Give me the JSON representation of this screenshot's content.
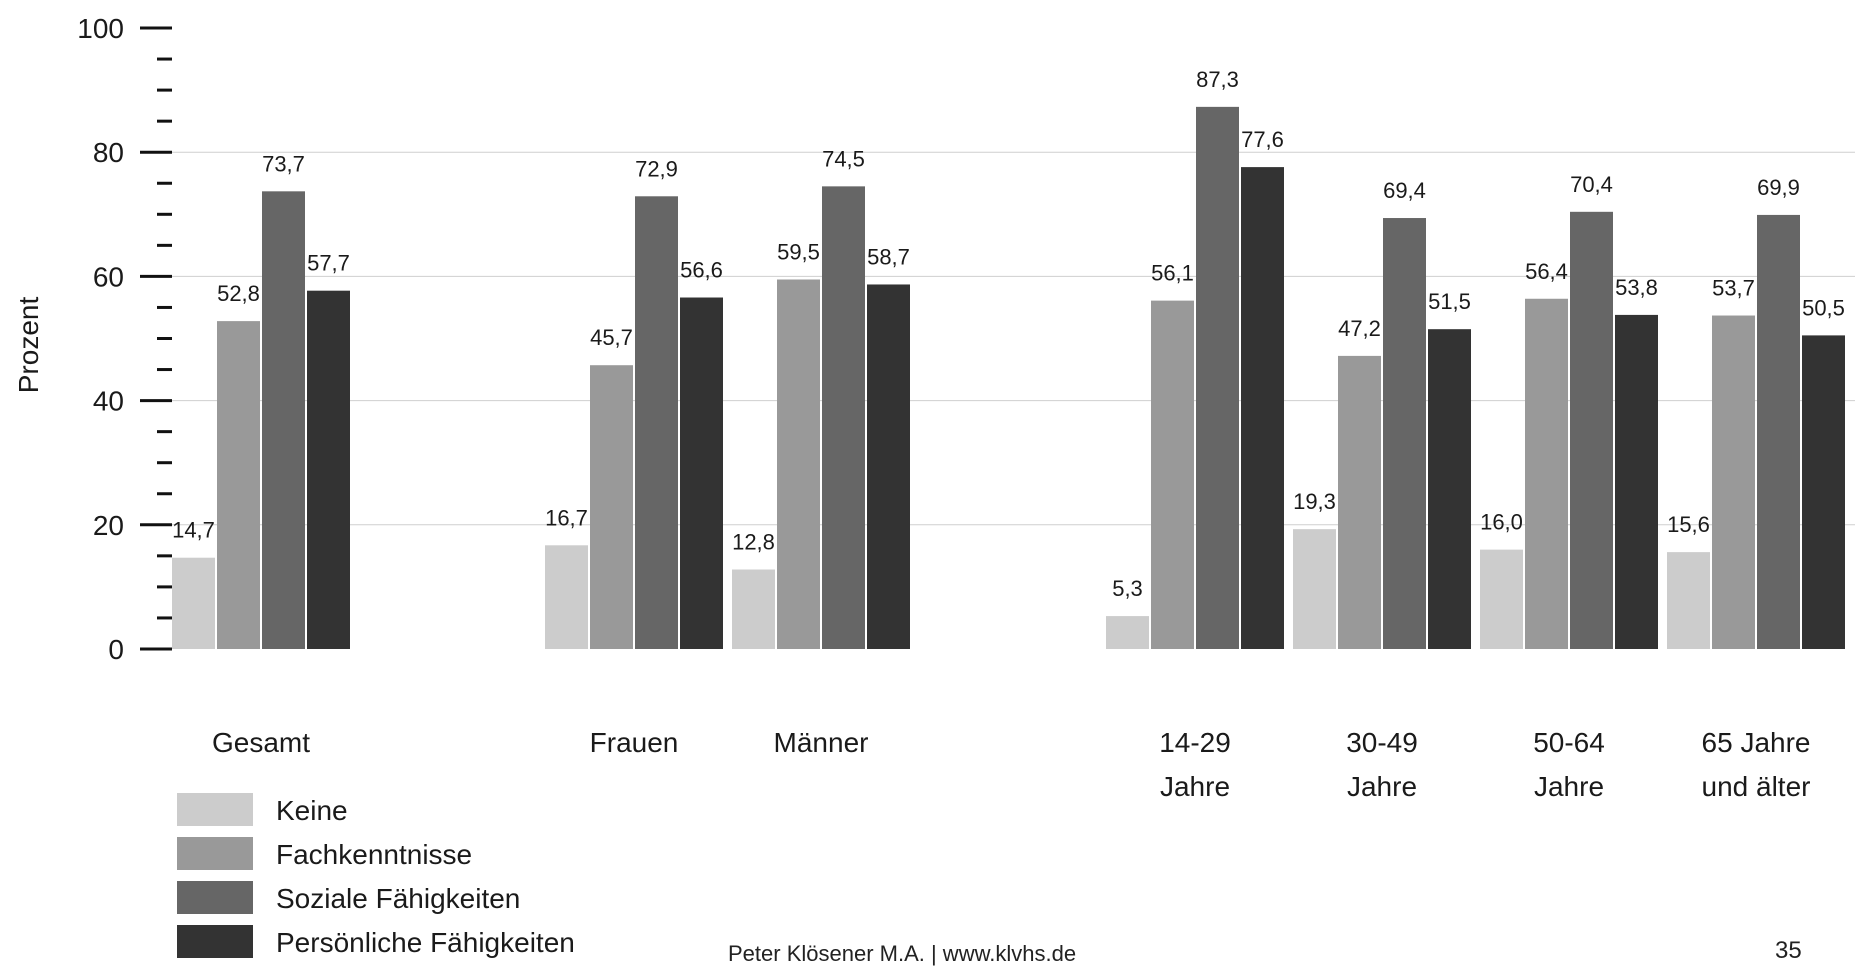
{
  "chart_data": {
    "type": "bar",
    "ylabel": "Prozent",
    "ylim": [
      0,
      100
    ],
    "yticks": [
      0,
      20,
      40,
      60,
      80,
      100
    ],
    "grid": true,
    "legend_position": "bottom-left",
    "categories": [
      "Gesamt",
      "Frauen",
      "Männer",
      "14-29 Jahre",
      "30-49 Jahre",
      "50-64 Jahre",
      "65 Jahre und älter"
    ],
    "category_labels": [
      [
        "Gesamt"
      ],
      [
        "Frauen"
      ],
      [
        "Männer"
      ],
      [
        "14-29",
        "Jahre"
      ],
      [
        "30-49",
        "Jahre"
      ],
      [
        "50-64",
        "Jahre"
      ],
      [
        "65 Jahre",
        "und älter"
      ]
    ],
    "series": [
      {
        "name": "Keine",
        "color": "#cccccc",
        "values": [
          14.7,
          16.7,
          12.8,
          5.3,
          19.3,
          16.0,
          15.6
        ],
        "labels": [
          "14,7",
          "16,7",
          "12,8",
          "5,3",
          "19,3",
          "16,0",
          "15,6"
        ]
      },
      {
        "name": "Fachkenntnisse",
        "color": "#999999",
        "values": [
          52.8,
          45.7,
          59.5,
          56.1,
          47.2,
          56.4,
          53.7
        ],
        "labels": [
          "52,8",
          "45,7",
          "59,5",
          "56,1",
          "47,2",
          "56,4",
          "53,7"
        ]
      },
      {
        "name": "Soziale Fähigkeiten",
        "color": "#666666",
        "values": [
          73.7,
          72.9,
          74.5,
          87.3,
          69.4,
          70.4,
          69.9
        ],
        "labels": [
          "73,7",
          "72,9",
          "74,5",
          "87,3",
          "69,4",
          "70,4",
          "69,9"
        ]
      },
      {
        "name": "Persönliche Fähigkeiten",
        "color": "#333333",
        "values": [
          57.7,
          56.6,
          58.7,
          77.6,
          51.5,
          53.8,
          50.5
        ],
        "labels": [
          "57,7",
          "56,6",
          "58,7",
          "77,6",
          "51,5",
          "53,8",
          "50,5"
        ]
      }
    ]
  },
  "footer": {
    "credit": "Peter Klösener M.A. | www.klvhs.de",
    "page_number": "35"
  }
}
